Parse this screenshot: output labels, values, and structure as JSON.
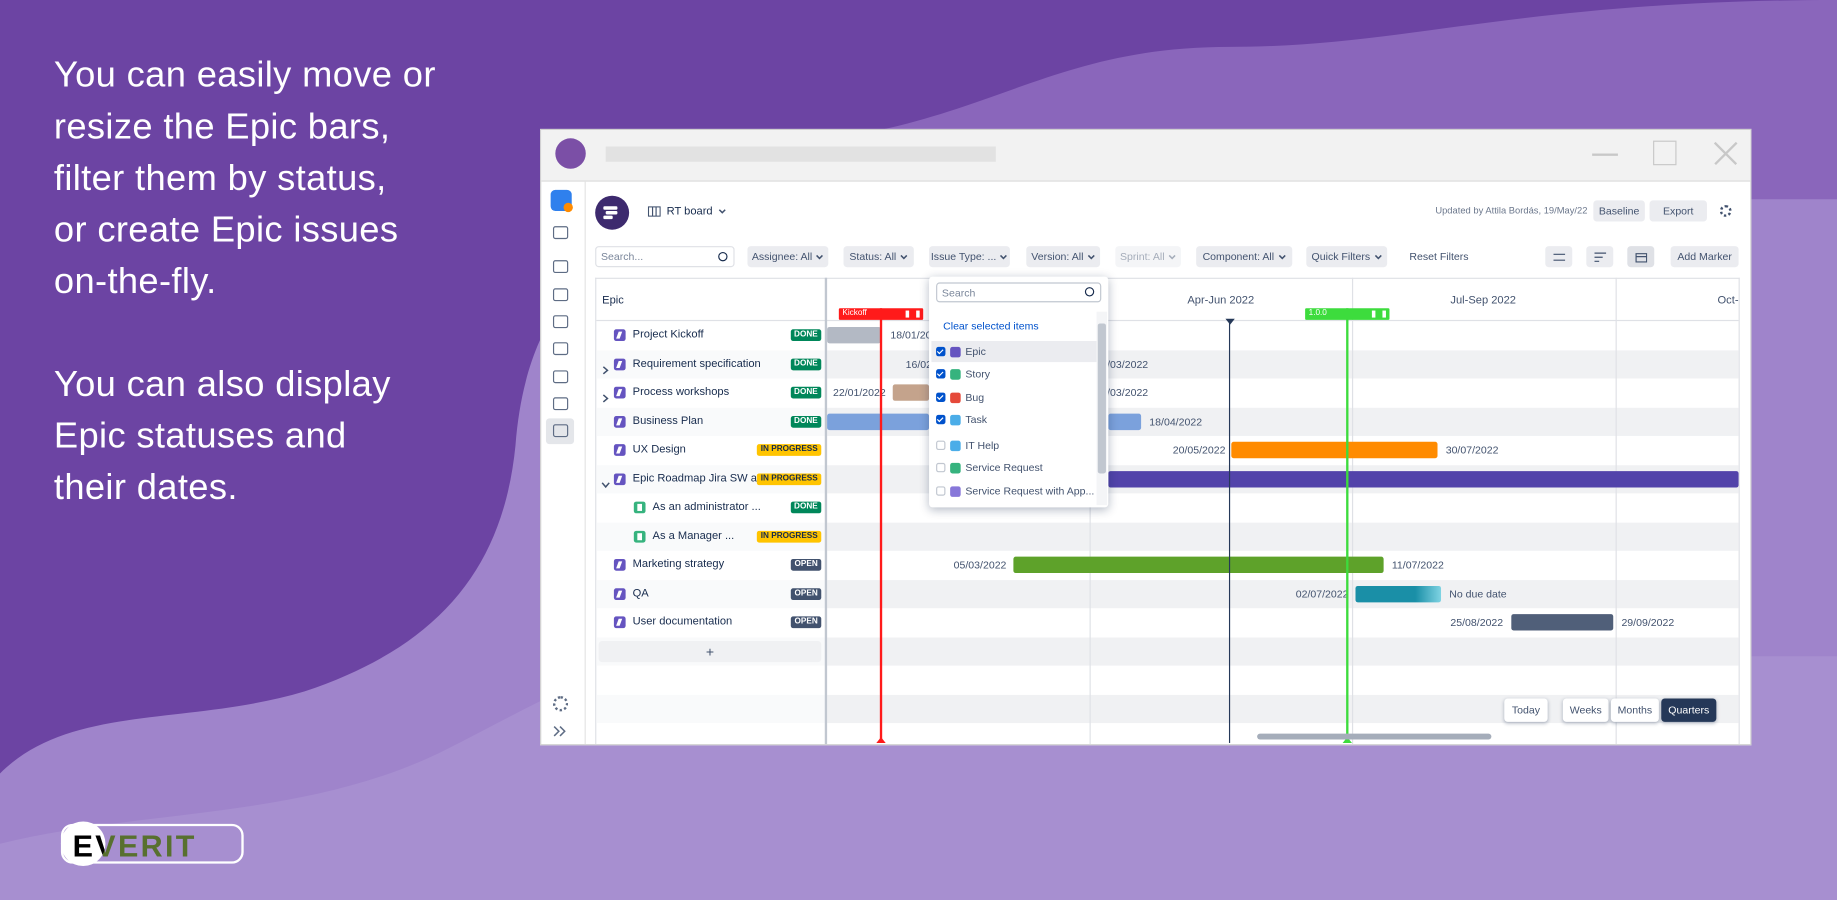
{
  "promo": {
    "paragraphs": [
      [
        "You can easily move or",
        "resize the Epic bars,",
        "filter them by status,",
        "or create Epic issues",
        "on-the-fly."
      ],
      [
        "You can also display",
        "Epic statuses and",
        "their dates."
      ]
    ]
  },
  "logo": "EVERIT",
  "toolbar": {
    "board": "RT board",
    "updated": "Updated by Attila Bordás, 19/May/22",
    "buttons": [
      "Baseline",
      "Export"
    ]
  },
  "filters": {
    "search": "Search...",
    "items": [
      {
        "label": "Assignee: All"
      },
      {
        "label": "Status: All"
      },
      {
        "label": "Issue Type: ..."
      },
      {
        "label": "Version: All"
      },
      {
        "label": "Sprint: All",
        "disabled": true
      },
      {
        "label": "Component: All"
      },
      {
        "label": "Quick Filters"
      }
    ],
    "reset": "Reset Filters",
    "add_marker": "Add Marker"
  },
  "grid": {
    "epic_header": "Epic",
    "periods": [
      "Apr-Jun 2022",
      "Jul-Sep 2022",
      "Oct-"
    ],
    "add": "+",
    "rows": [
      {
        "name": "Project Kickoff",
        "status": "DONE",
        "type": "epic",
        "level": 0,
        "color": "#b3b9c4",
        "end": "18/01/20"
      },
      {
        "name": "Requirement specification",
        "status": "DONE",
        "type": "epic",
        "level": 0,
        "expand": "collapsed",
        "start": "16/02",
        "end": "/03/2022"
      },
      {
        "name": "Process workshops",
        "status": "DONE",
        "type": "epic",
        "level": 0,
        "expand": "collapsed",
        "color": "#c4a38c",
        "start": "22/01/2022",
        "end": "/03/2022"
      },
      {
        "name": "Business Plan",
        "status": "DONE",
        "type": "epic",
        "level": 0,
        "color": "#7ba1dc",
        "end": "18/04/2022"
      },
      {
        "name": "UX Design",
        "status": "IN PROGRESS",
        "type": "epic",
        "level": 0,
        "color": "#ff8b00",
        "start": "20/05/2022",
        "end": "30/07/2022"
      },
      {
        "name": "Epic Roadmap Jira SW app",
        "status": "IN PROGRESS",
        "type": "epic",
        "level": 0,
        "expand": "expanded",
        "color": "#5243aa"
      },
      {
        "name": "As an administrator ...",
        "status": "DONE",
        "type": "story",
        "level": 1
      },
      {
        "name": "As a Manager ...",
        "status": "IN PROGRESS",
        "type": "story",
        "level": 1
      },
      {
        "name": "Marketing strategy",
        "status": "OPEN",
        "type": "epic",
        "level": 0,
        "color": "#5ea22a",
        "start": "05/03/2022",
        "end": "11/07/2022"
      },
      {
        "name": "QA",
        "status": "OPEN",
        "type": "epic",
        "level": 0,
        "color": "#1a8fa7",
        "start": "02/07/2022",
        "end": "No due date"
      },
      {
        "name": "User documentation",
        "status": "OPEN",
        "type": "epic",
        "level": 0,
        "color": "#505f79",
        "start": "25/08/2022",
        "end": "29/09/2022"
      }
    ]
  },
  "markers": [
    {
      "label": "Kickoff",
      "color": "#ff1a1a"
    },
    {
      "label": "1.0.0",
      "color": "#3ddc3d"
    }
  ],
  "dropdown": {
    "search": "Search",
    "clear": "Clear selected items",
    "items": [
      {
        "label": "Epic",
        "checked": true,
        "color": "#6554c0"
      },
      {
        "label": "Story",
        "checked": true,
        "color": "#36b37e"
      },
      {
        "label": "Bug",
        "checked": true,
        "color": "#e5493a"
      },
      {
        "label": "Task",
        "checked": true,
        "color": "#4bade8"
      },
      {
        "label": "IT Help",
        "checked": false,
        "color": "#4bade8"
      },
      {
        "label": "Service Request",
        "checked": false,
        "color": "#36b37e"
      },
      {
        "label": "Service Request with App...",
        "checked": false,
        "color": "#8777d9"
      }
    ]
  },
  "views": {
    "today": "Today",
    "scales": [
      "Weeks",
      "Months",
      "Quarters"
    ],
    "active": "Quarters"
  }
}
